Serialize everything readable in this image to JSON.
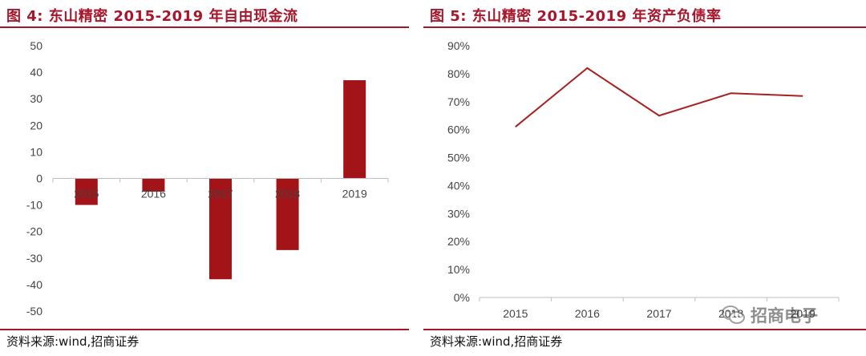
{
  "figures": [
    {
      "title": "图 4:  东山精密 2015-2019 年自由现金流",
      "source": "资料来源:wind,招商证券"
    },
    {
      "title": "图 5:  东山精密 2015-2019 年资产负债率",
      "source": "资料来源:wind,招商证券"
    }
  ],
  "watermark": {
    "text": "招商电子",
    "icon": "wechat-icon"
  },
  "colors": {
    "accent": "#a8162b",
    "bar": "#a31419",
    "line": "#a8211f",
    "axis": "#bfbfbf"
  },
  "chart_data": [
    {
      "type": "bar",
      "categories": [
        "2015",
        "2016",
        "2017",
        "2018",
        "2019"
      ],
      "values": [
        -10,
        -5,
        -38,
        -27,
        37
      ],
      "ylim": [
        -50,
        50
      ],
      "yticks": [
        "50",
        "40",
        "30",
        "20",
        "10",
        "0",
        "-10",
        "-20",
        "-30",
        "-40",
        "-50"
      ],
      "xlabel": "",
      "ylabel": ""
    },
    {
      "type": "line",
      "categories": [
        "2015",
        "2016",
        "2017",
        "2018",
        "2019"
      ],
      "values": [
        0.61,
        0.82,
        0.65,
        0.73,
        0.72
      ],
      "ylim": [
        0,
        0.9
      ],
      "yticks": [
        "90%",
        "80%",
        "70%",
        "60%",
        "50%",
        "40%",
        "30%",
        "20%",
        "10%",
        "0%"
      ],
      "xlabel": "",
      "ylabel": ""
    }
  ]
}
